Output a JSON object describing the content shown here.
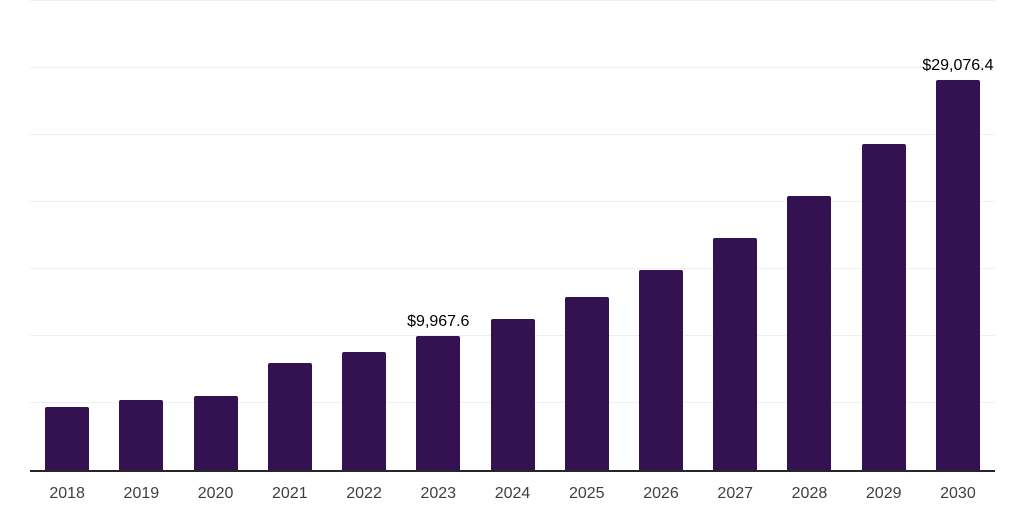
{
  "chart_data": {
    "type": "bar",
    "categories": [
      "2018",
      "2019",
      "2020",
      "2021",
      "2022",
      "2023",
      "2024",
      "2025",
      "2026",
      "2027",
      "2028",
      "2029",
      "2030"
    ],
    "values": [
      4700,
      5200,
      5550,
      8000,
      8830,
      9967.6,
      11250,
      12900,
      14950,
      17350,
      20450,
      24300,
      29076.4
    ],
    "value_labels": [
      null,
      null,
      null,
      null,
      null,
      "$9,967.6",
      null,
      null,
      null,
      null,
      null,
      null,
      "$29,076.4"
    ],
    "title": "",
    "xlabel": "",
    "ylabel": "",
    "ylim": [
      0,
      35000
    ],
    "gridline_step": 5000,
    "grid": true,
    "legend": false,
    "colors": {
      "bar": "#341150",
      "axis_line": "#262626",
      "gridline": "#efefef",
      "tick_label": "#3f3f3f",
      "value_label": "#000000",
      "background": "#ffffff"
    }
  }
}
